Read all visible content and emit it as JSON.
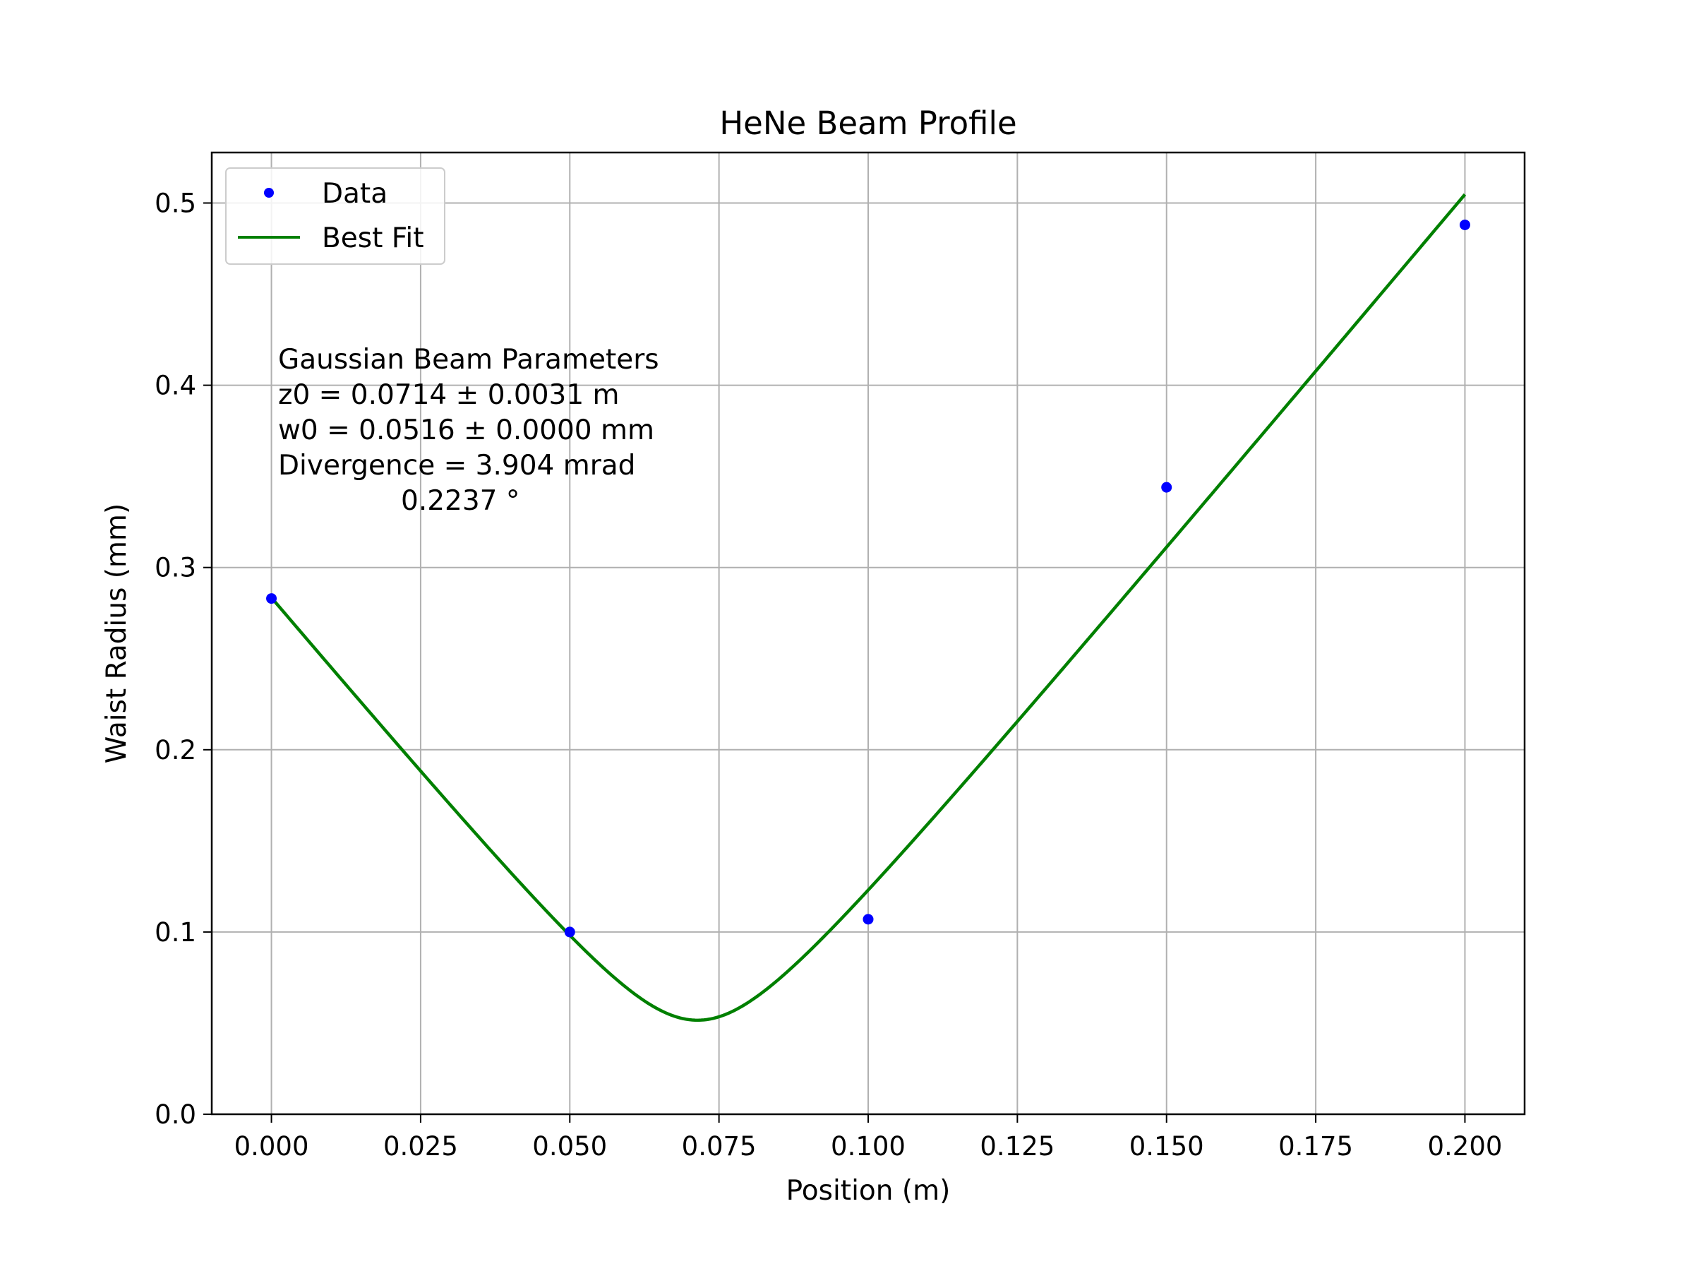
{
  "chart_data": {
    "type": "line",
    "title": "HeNe Beam Profile",
    "xlabel": "Position (m)",
    "ylabel": "Waist Radius (mm)",
    "xlim": [
      -0.01,
      0.21
    ],
    "ylim": [
      0.0,
      0.5277
    ],
    "xticks": [
      "0.000",
      "0.025",
      "0.050",
      "0.075",
      "0.100",
      "0.125",
      "0.150",
      "0.175",
      "0.200"
    ],
    "xtick_values": [
      0.0,
      0.025,
      0.05,
      0.075,
      0.1,
      0.125,
      0.15,
      0.175,
      0.2
    ],
    "yticks": [
      "0.0",
      "0.1",
      "0.2",
      "0.3",
      "0.4",
      "0.5"
    ],
    "ytick_values": [
      0.0,
      0.1,
      0.2,
      0.3,
      0.4,
      0.5
    ],
    "grid": true,
    "legend_position": "top-left",
    "series": [
      {
        "name": "Data",
        "kind": "scatter",
        "color": "#0000ff",
        "x": [
          0.0,
          0.05,
          0.1,
          0.15,
          0.2
        ],
        "y": [
          0.283,
          0.1,
          0.107,
          0.344,
          0.488
        ]
      },
      {
        "name": "Best Fit",
        "kind": "line",
        "color": "#008000",
        "model": "gaussian_beam",
        "z0": 0.0714,
        "w0": 0.0516,
        "divergence_mrad": 3.904,
        "x_range": [
          0.0,
          0.2
        ]
      }
    ],
    "annotation": {
      "lines": [
        "Gaussian Beam Parameters",
        "z0 = 0.0714 ± 0.0031 m",
        "w0 = 0.0516 ± 0.0000 mm",
        "Divergence = 3.904 mrad"
      ],
      "last_line": "0.2237 °"
    }
  }
}
